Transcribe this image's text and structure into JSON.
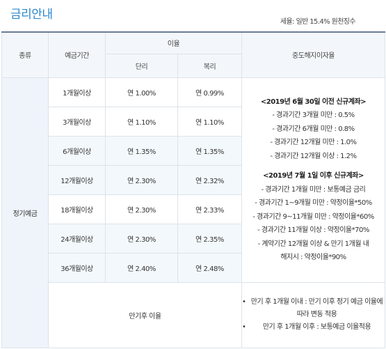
{
  "page": {
    "title": "금리안내",
    "tax_note": "세율: 일반 15.4% 원천징수"
  },
  "table": {
    "headers": {
      "type": "종류",
      "period": "예금기간",
      "rate": "이율",
      "simple": "단리",
      "compound": "복리",
      "early": "중도해지이자율"
    },
    "category": "정기예금",
    "rows": [
      {
        "period": "1개월이상",
        "simple": "연 1.00%",
        "compound": "연 0.99%"
      },
      {
        "period": "3개월이상",
        "simple": "연 1.10%",
        "compound": "연 1.10%"
      },
      {
        "period": "6개월이상",
        "simple": "연 1.35%",
        "compound": "연 1.35%"
      },
      {
        "period": "12개월이상",
        "simple": "연 2.30%",
        "compound": "연 2.32%"
      },
      {
        "period": "18개월이상",
        "simple": "연 2.30%",
        "compound": "연 2.33%"
      },
      {
        "period": "24개월이상",
        "simple": "연 2.30%",
        "compound": "연 2.35%"
      },
      {
        "period": "36개월이상",
        "simple": "연 2.40%",
        "compound": "연 2.48%"
      }
    ],
    "early_notes": {
      "before_title": "<2019년 6월 30일 이전 신규계좌>",
      "before": [
        "- 경과기간 3개월 미만 : 0.5%",
        "- 경과기간 6개월 미만 : 0.8%",
        "- 경과기간 12개월 미만 : 1.0%",
        "- 경과기간 12개월 이상 : 1.2%"
      ],
      "after_title": "<2019년 7월 1일 이후 신규계좌>",
      "after": [
        "- 경과기간 1개월 미만 : 보통예금 금리",
        "- 경과기간 1~9개월 미만 : 약정이율*50%",
        "- 경과기간 9~11개월 미만 : 약정이율*60%",
        "- 경과기간 11개월 이상 : 약정이율*70%",
        "- 계약기간 12개월 이상 & 만기 1개월 내",
        "  해지시 : 약정이율*90%"
      ]
    },
    "maturity": {
      "label": "만기후 이율",
      "notes": [
        "만기 후 1개월 이내 : 만기 이후 정기 예금 이율에 따라 변동 적용",
        "만기 후 1개월 이후 : 보통예금 이율적용"
      ]
    }
  }
}
